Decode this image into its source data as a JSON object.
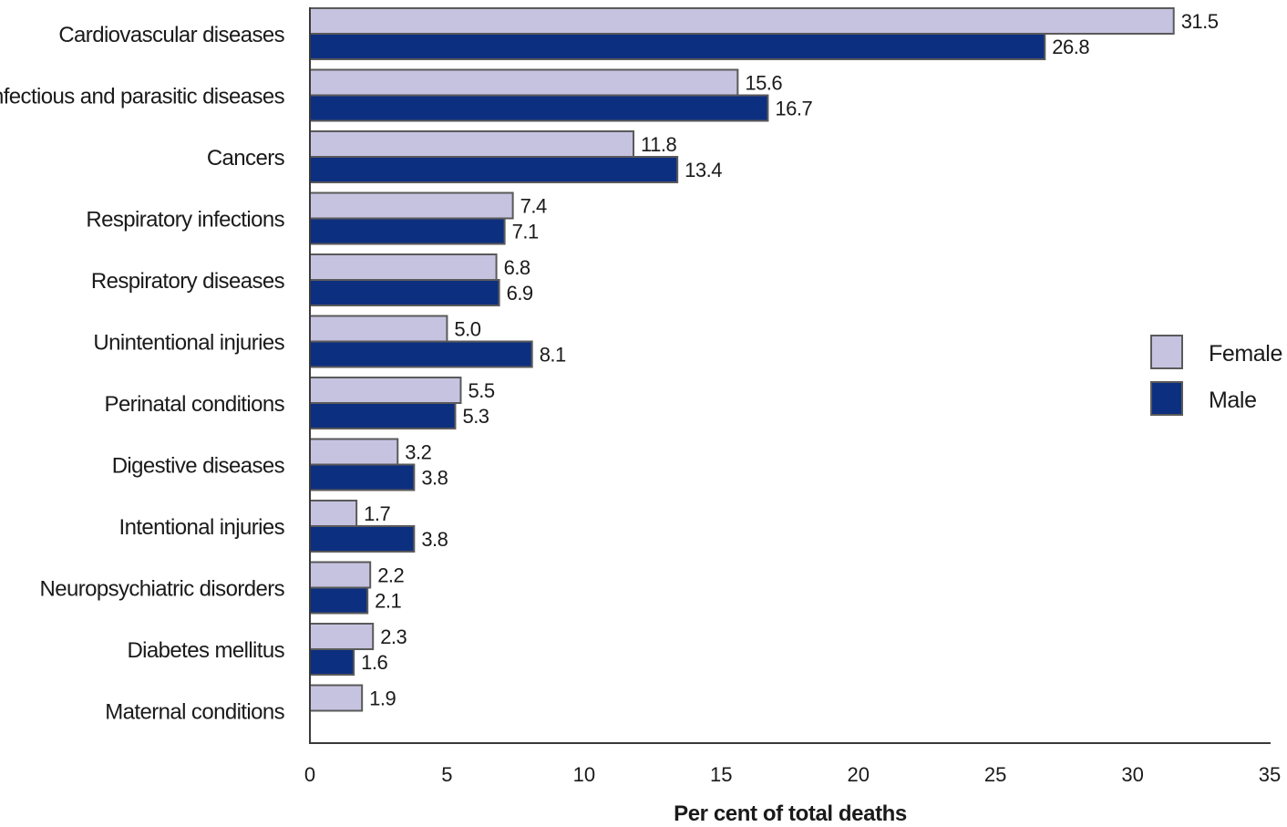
{
  "chart_data": {
    "type": "bar",
    "orientation": "horizontal",
    "categories": [
      "Cardiovascular diseases",
      "Infectious and parasitic diseases",
      "Cancers",
      "Respiratory infections",
      "Respiratory diseases",
      "Unintentional injuries",
      "Perinatal conditions",
      "Digestive diseases",
      "Intentional injuries",
      "Neuropsychiatric disorders",
      "Diabetes mellitus",
      "Maternal conditions"
    ],
    "series": [
      {
        "name": "Female",
        "color": "#c5c3e0",
        "values": [
          31.5,
          15.6,
          11.8,
          7.4,
          6.8,
          5.0,
          5.5,
          3.2,
          1.7,
          2.2,
          2.3,
          1.9
        ],
        "labels": [
          "31.5",
          "15.6",
          "11.8",
          "7.4",
          "6.8",
          "5.0",
          "5.5",
          "3.2",
          "1.7",
          "2.2",
          "2.3",
          "1.9"
        ]
      },
      {
        "name": "Male",
        "color": "#0d2f80",
        "values": [
          26.8,
          16.7,
          13.4,
          7.1,
          6.9,
          8.1,
          5.3,
          3.8,
          3.8,
          2.1,
          1.6,
          null
        ],
        "labels": [
          "26.8",
          "16.7",
          "13.4",
          "7.1",
          "6.9",
          "8.1",
          "5.3",
          "3.8",
          "3.8",
          "2.1",
          "1.6",
          ""
        ]
      }
    ],
    "xlabel": "Per cent of total deaths",
    "ylabel": "",
    "xlim": [
      0,
      35
    ],
    "xticks": [
      "0",
      "5",
      "10",
      "15",
      "20",
      "25",
      "30",
      "35"
    ],
    "grid": false,
    "legend": {
      "position": "right",
      "entries": [
        "Female",
        "Male"
      ]
    },
    "bar_outline_color": "#5a5a5a"
  }
}
